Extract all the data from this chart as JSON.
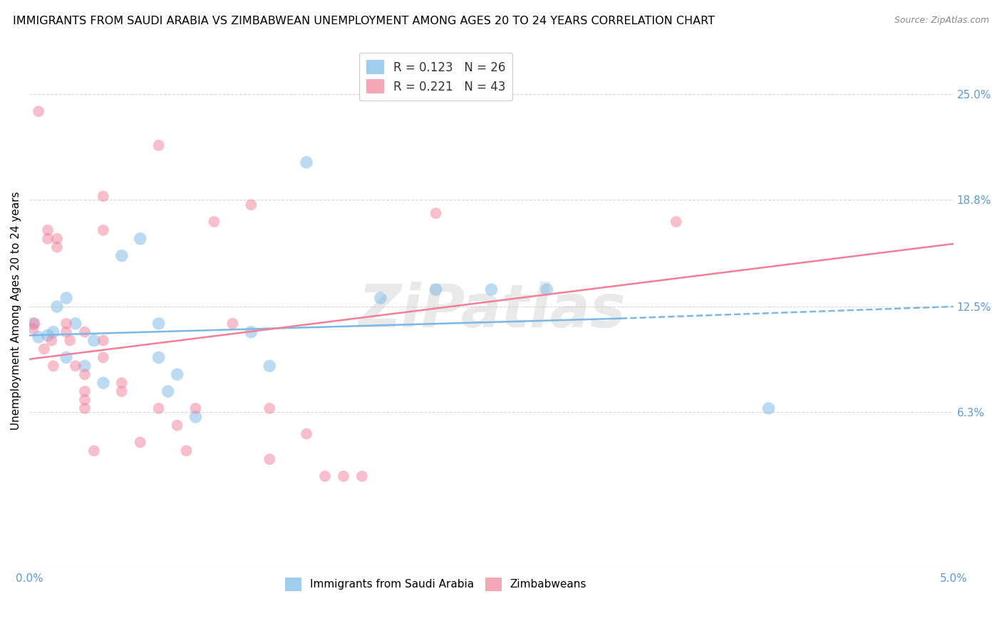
{
  "title": "IMMIGRANTS FROM SAUDI ARABIA VS ZIMBABWEAN UNEMPLOYMENT AMONG AGES 20 TO 24 YEARS CORRELATION CHART",
  "source": "Source: ZipAtlas.com",
  "ylabel": "Unemployment Among Ages 20 to 24 years",
  "ytick_labels": [
    "25.0%",
    "18.8%",
    "12.5%",
    "6.3%"
  ],
  "ytick_values": [
    0.25,
    0.188,
    0.125,
    0.063
  ],
  "xmin": 0.0,
  "xmax": 0.05,
  "ymin": -0.03,
  "ymax": 0.275,
  "watermark": "ZiPatlas",
  "legend_top": [
    {
      "label": "R = 0.123   N = 26",
      "color": "#7ab8e8"
    },
    {
      "label": "R = 0.221   N = 43",
      "color": "#f08098"
    }
  ],
  "legend_bottom": [
    {
      "label": "Immigrants from Saudi Arabia",
      "color": "#7ab8e8"
    },
    {
      "label": "Zimbabweans",
      "color": "#f08098"
    }
  ],
  "saudi_color": "#7ab8e8",
  "zimbabwe_color": "#f08098",
  "saudi_scatter": [
    [
      0.0002,
      0.115
    ],
    [
      0.0005,
      0.107
    ],
    [
      0.001,
      0.108
    ],
    [
      0.0013,
      0.11
    ],
    [
      0.0015,
      0.125
    ],
    [
      0.002,
      0.13
    ],
    [
      0.002,
      0.095
    ],
    [
      0.0025,
      0.115
    ],
    [
      0.003,
      0.09
    ],
    [
      0.0035,
      0.105
    ],
    [
      0.004,
      0.08
    ],
    [
      0.005,
      0.155
    ],
    [
      0.006,
      0.165
    ],
    [
      0.007,
      0.115
    ],
    [
      0.007,
      0.095
    ],
    [
      0.0075,
      0.075
    ],
    [
      0.008,
      0.085
    ],
    [
      0.009,
      0.06
    ],
    [
      0.012,
      0.11
    ],
    [
      0.013,
      0.09
    ],
    [
      0.015,
      0.21
    ],
    [
      0.019,
      0.13
    ],
    [
      0.022,
      0.135
    ],
    [
      0.025,
      0.135
    ],
    [
      0.028,
      0.135
    ],
    [
      0.04,
      0.065
    ]
  ],
  "zimbabwe_scatter": [
    [
      0.0002,
      0.112
    ],
    [
      0.0003,
      0.115
    ],
    [
      0.0005,
      0.24
    ],
    [
      0.0008,
      0.1
    ],
    [
      0.001,
      0.165
    ],
    [
      0.001,
      0.17
    ],
    [
      0.0012,
      0.105
    ],
    [
      0.0013,
      0.09
    ],
    [
      0.0015,
      0.165
    ],
    [
      0.0015,
      0.16
    ],
    [
      0.002,
      0.115
    ],
    [
      0.002,
      0.11
    ],
    [
      0.0022,
      0.105
    ],
    [
      0.0025,
      0.09
    ],
    [
      0.003,
      0.11
    ],
    [
      0.003,
      0.085
    ],
    [
      0.003,
      0.075
    ],
    [
      0.003,
      0.07
    ],
    [
      0.003,
      0.065
    ],
    [
      0.0035,
      0.04
    ],
    [
      0.004,
      0.19
    ],
    [
      0.004,
      0.17
    ],
    [
      0.004,
      0.105
    ],
    [
      0.004,
      0.095
    ],
    [
      0.005,
      0.08
    ],
    [
      0.005,
      0.075
    ],
    [
      0.006,
      0.045
    ],
    [
      0.007,
      0.22
    ],
    [
      0.007,
      0.065
    ],
    [
      0.008,
      0.055
    ],
    [
      0.0085,
      0.04
    ],
    [
      0.009,
      0.065
    ],
    [
      0.01,
      0.175
    ],
    [
      0.011,
      0.115
    ],
    [
      0.012,
      0.185
    ],
    [
      0.013,
      0.065
    ],
    [
      0.013,
      0.035
    ],
    [
      0.015,
      0.05
    ],
    [
      0.016,
      0.025
    ],
    [
      0.017,
      0.025
    ],
    [
      0.018,
      0.025
    ],
    [
      0.022,
      0.18
    ],
    [
      0.035,
      0.175
    ]
  ],
  "saudi_line_solid": {
    "x0": 0.0,
    "y0": 0.108,
    "x1": 0.032,
    "y1": 0.118
  },
  "saudi_line_dashed": {
    "x0": 0.032,
    "y0": 0.118,
    "x1": 0.05,
    "y1": 0.125
  },
  "zimbabwe_line": {
    "x0": 0.0,
    "y0": 0.094,
    "x1": 0.05,
    "y1": 0.162
  },
  "saudi_scatter_size": 160,
  "zimbabwe_scatter_size": 130,
  "title_fontsize": 11.5,
  "label_fontsize": 11,
  "tick_fontsize": 11,
  "legend_fontsize": 12,
  "axis_label_color": "#5b9bd5",
  "grid_color": "#d8d8d8",
  "background_color": "#ffffff"
}
